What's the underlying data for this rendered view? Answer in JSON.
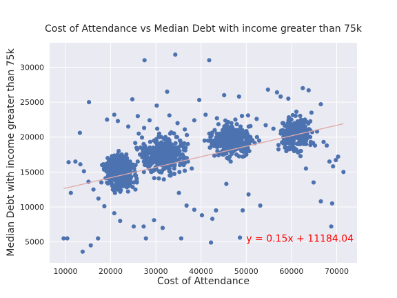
{
  "chart_data": {
    "type": "scatter",
    "title": "Cost of Attendance vs Median Debt with income greater than 75k",
    "xlabel": "Cost of Attendance",
    "ylabel": "Median Debt with income greater than 75k",
    "xlim": [
      6500,
      74500
    ],
    "ylim": [
      2000,
      33500
    ],
    "x_ticks": [
      10000,
      20000,
      30000,
      40000,
      50000,
      60000,
      70000
    ],
    "y_ticks": [
      5000,
      10000,
      15000,
      20000,
      25000,
      30000
    ],
    "x_tick_labels": [
      "10000",
      "20000",
      "30000",
      "40000",
      "50000",
      "60000",
      "70000"
    ],
    "y_tick_labels": [
      "5000",
      "10000",
      "15000",
      "20000",
      "25000",
      "30000"
    ],
    "grid": true,
    "background": "#EAEAF2",
    "grid_color": "#FFFFFF",
    "point_color": "#4C72B0",
    "point_count_estimate": 1500,
    "sample_points": [
      [
        9600,
        5500
      ],
      [
        10400,
        5500
      ],
      [
        13800,
        3600
      ],
      [
        15600,
        4500
      ],
      [
        17200,
        5500
      ],
      [
        27800,
        5500
      ],
      [
        31500,
        7000
      ],
      [
        35600,
        5500
      ],
      [
        42200,
        4900
      ],
      [
        48600,
        5600
      ],
      [
        27500,
        31000
      ],
      [
        34300,
        31800
      ],
      [
        41800,
        31000
      ],
      [
        32500,
        26500
      ],
      [
        30200,
        24500
      ],
      [
        15200,
        25000
      ],
      [
        13200,
        20600
      ],
      [
        24800,
        25400
      ],
      [
        39600,
        25300
      ],
      [
        45100,
        26000
      ],
      [
        48400,
        25800
      ],
      [
        54800,
        26800
      ],
      [
        56800,
        26400
      ],
      [
        57600,
        25800
      ],
      [
        59300,
        25500
      ],
      [
        62500,
        27000
      ],
      [
        63800,
        26700
      ],
      [
        66500,
        24700
      ],
      [
        58700,
        19800
      ],
      [
        61500,
        17800
      ],
      [
        63200,
        15500
      ],
      [
        65200,
        18800
      ],
      [
        67100,
        19300
      ],
      [
        67800,
        18800
      ],
      [
        68400,
        16500
      ],
      [
        69200,
        15800
      ],
      [
        69800,
        16700
      ],
      [
        70300,
        17200
      ],
      [
        71500,
        15000
      ],
      [
        69000,
        10500
      ],
      [
        68800,
        7200
      ],
      [
        66500,
        10800
      ],
      [
        64900,
        13500
      ],
      [
        53100,
        10200
      ],
      [
        50500,
        11800
      ],
      [
        49200,
        9500
      ],
      [
        45600,
        13300
      ],
      [
        43300,
        9500
      ],
      [
        38500,
        9600
      ],
      [
        40200,
        8800
      ],
      [
        42500,
        8300
      ],
      [
        36800,
        10200
      ],
      [
        35100,
        12000
      ],
      [
        29600,
        8100
      ],
      [
        27300,
        7200
      ],
      [
        25100,
        7200
      ],
      [
        22100,
        8000
      ],
      [
        20800,
        9100
      ],
      [
        18600,
        10100
      ],
      [
        17300,
        11200
      ],
      [
        16200,
        12500
      ],
      [
        15100,
        13600
      ],
      [
        14100,
        15100
      ],
      [
        13300,
        16100
      ],
      [
        12200,
        16500
      ],
      [
        11200,
        12000
      ],
      [
        10700,
        16400
      ],
      [
        19200,
        22500
      ],
      [
        20800,
        23200
      ],
      [
        21600,
        22300
      ],
      [
        23900,
        21500
      ],
      [
        26000,
        23000
      ],
      [
        27400,
        21300
      ],
      [
        28600,
        22400
      ],
      [
        30300,
        21200
      ],
      [
        33000,
        23100
      ],
      [
        34800,
        22000
      ],
      [
        36400,
        21100
      ],
      [
        38500,
        22400
      ],
      [
        41000,
        23200
      ],
      [
        43500,
        22700
      ],
      [
        46700,
        22000
      ],
      [
        50400,
        23100
      ],
      [
        52300,
        22600
      ],
      [
        54300,
        21700
      ],
      [
        56000,
        21200
      ],
      [
        57700,
        20900
      ],
      [
        60100,
        20300
      ],
      [
        61700,
        20600
      ],
      [
        62700,
        21200
      ]
    ],
    "trendline": {
      "slope": 0.15,
      "intercept": 11184.04,
      "x_start": 9600,
      "x_end": 71500,
      "color": "#E0A8A8"
    },
    "annotation": {
      "text": "y = 0.15x + 11184.04",
      "x": 50000,
      "y": 5000,
      "color": "#FF0000"
    }
  }
}
